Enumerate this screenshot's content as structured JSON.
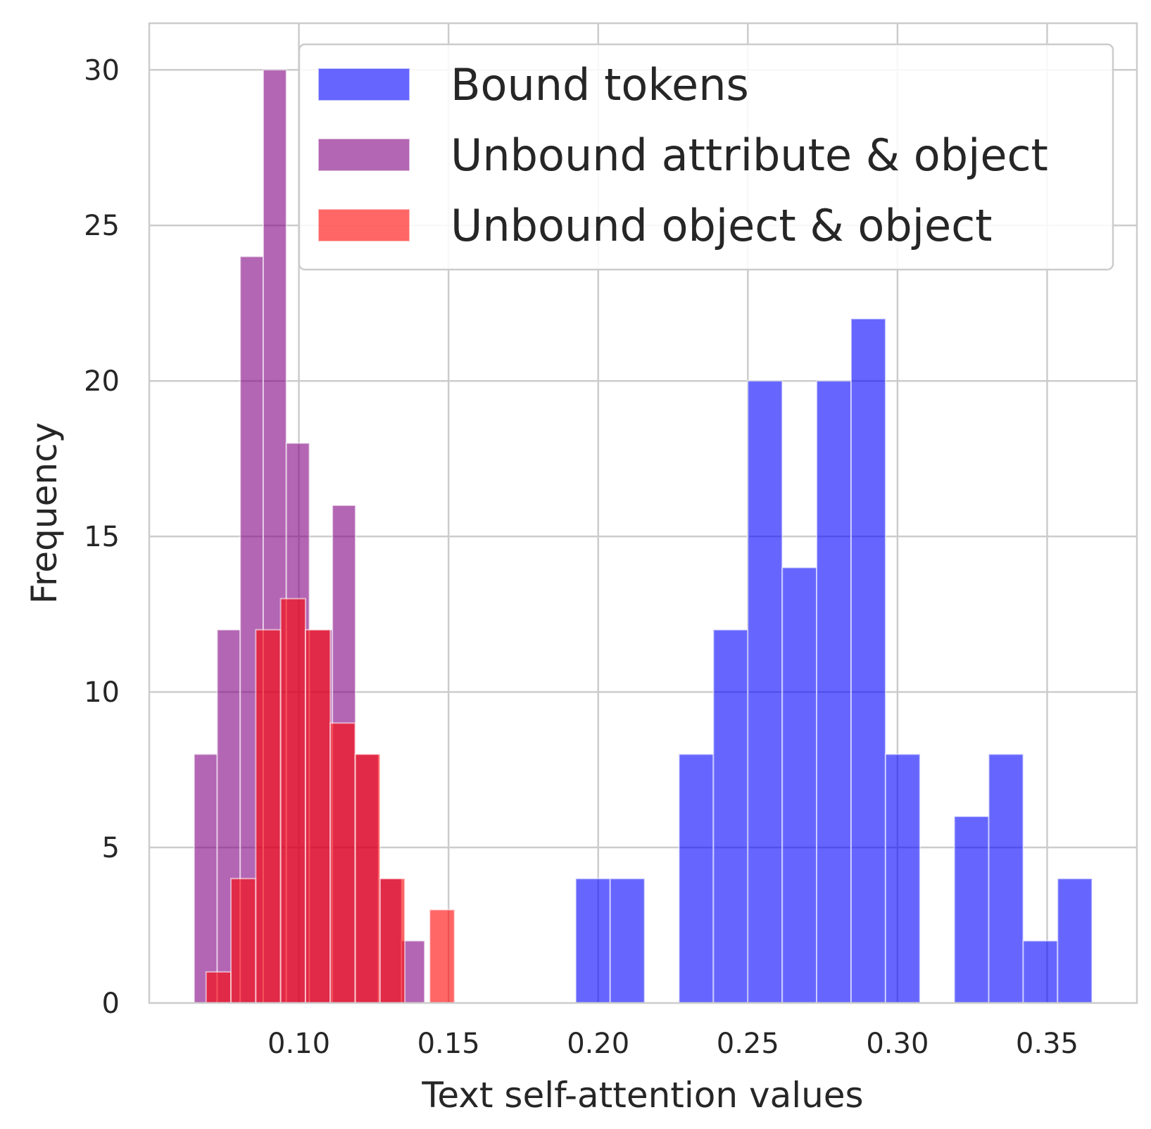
{
  "chart_data": {
    "type": "bar",
    "subtype": "overlaid-histogram",
    "xlabel": "Text self-attention values",
    "ylabel": "Frequency",
    "xlim": [
      0.05,
      0.38
    ],
    "ylim": [
      0,
      31.5
    ],
    "xticks": [
      0.1,
      0.15,
      0.2,
      0.25,
      0.3,
      0.35
    ],
    "xtick_labels": [
      "0.10",
      "0.15",
      "0.20",
      "0.25",
      "0.30",
      "0.35"
    ],
    "yticks": [
      0,
      5,
      10,
      15,
      20,
      25,
      30
    ],
    "ytick_labels": [
      "0",
      "5",
      "10",
      "15",
      "20",
      "25",
      "30"
    ],
    "grid": true,
    "legend_position": "top-right",
    "series": [
      {
        "name": "Bound tokens",
        "color": "#0000ff",
        "opacity": 0.6,
        "bins": [
          {
            "x0": 0.1925,
            "x1": 0.204,
            "count": 4
          },
          {
            "x0": 0.204,
            "x1": 0.2155,
            "count": 4
          },
          {
            "x0": 0.2155,
            "x1": 0.227,
            "count": 0
          },
          {
            "x0": 0.227,
            "x1": 0.2385,
            "count": 8
          },
          {
            "x0": 0.2385,
            "x1": 0.25,
            "count": 12
          },
          {
            "x0": 0.25,
            "x1": 0.2615,
            "count": 20
          },
          {
            "x0": 0.2615,
            "x1": 0.273,
            "count": 14
          },
          {
            "x0": 0.273,
            "x1": 0.2845,
            "count": 20
          },
          {
            "x0": 0.2845,
            "x1": 0.296,
            "count": 22
          },
          {
            "x0": 0.296,
            "x1": 0.3075,
            "count": 8
          },
          {
            "x0": 0.3075,
            "x1": 0.319,
            "count": 0
          },
          {
            "x0": 0.319,
            "x1": 0.3305,
            "count": 6
          },
          {
            "x0": 0.3305,
            "x1": 0.342,
            "count": 8
          },
          {
            "x0": 0.342,
            "x1": 0.3535,
            "count": 2
          },
          {
            "x0": 0.3535,
            "x1": 0.365,
            "count": 4
          }
        ]
      },
      {
        "name": "Unbound attribute & object",
        "color": "#800080",
        "opacity": 0.6,
        "bins": [
          {
            "x0": 0.065,
            "x1": 0.0727,
            "count": 8
          },
          {
            "x0": 0.0727,
            "x1": 0.0804,
            "count": 12
          },
          {
            "x0": 0.0804,
            "x1": 0.0881,
            "count": 24
          },
          {
            "x0": 0.0881,
            "x1": 0.0958,
            "count": 30
          },
          {
            "x0": 0.0958,
            "x1": 0.1035,
            "count": 18
          },
          {
            "x0": 0.1035,
            "x1": 0.1112,
            "count": 12
          },
          {
            "x0": 0.1112,
            "x1": 0.1189,
            "count": 16
          },
          {
            "x0": 0.1189,
            "x1": 0.1266,
            "count": 8
          },
          {
            "x0": 0.1266,
            "x1": 0.1343,
            "count": 4
          },
          {
            "x0": 0.1343,
            "x1": 0.142,
            "count": 2
          }
        ]
      },
      {
        "name": "Unbound object & object",
        "color": "#ff0000",
        "opacity": 0.6,
        "bins": [
          {
            "x0": 0.069,
            "x1": 0.0773,
            "count": 1
          },
          {
            "x0": 0.0773,
            "x1": 0.0856,
            "count": 4
          },
          {
            "x0": 0.0856,
            "x1": 0.0939,
            "count": 12
          },
          {
            "x0": 0.0939,
            "x1": 0.1022,
            "count": 13
          },
          {
            "x0": 0.1022,
            "x1": 0.1105,
            "count": 12
          },
          {
            "x0": 0.1105,
            "x1": 0.1188,
            "count": 9
          },
          {
            "x0": 0.1188,
            "x1": 0.1271,
            "count": 8
          },
          {
            "x0": 0.1271,
            "x1": 0.1354,
            "count": 4
          },
          {
            "x0": 0.1354,
            "x1": 0.1437,
            "count": 0
          },
          {
            "x0": 0.1437,
            "x1": 0.152,
            "count": 3
          }
        ]
      }
    ]
  }
}
